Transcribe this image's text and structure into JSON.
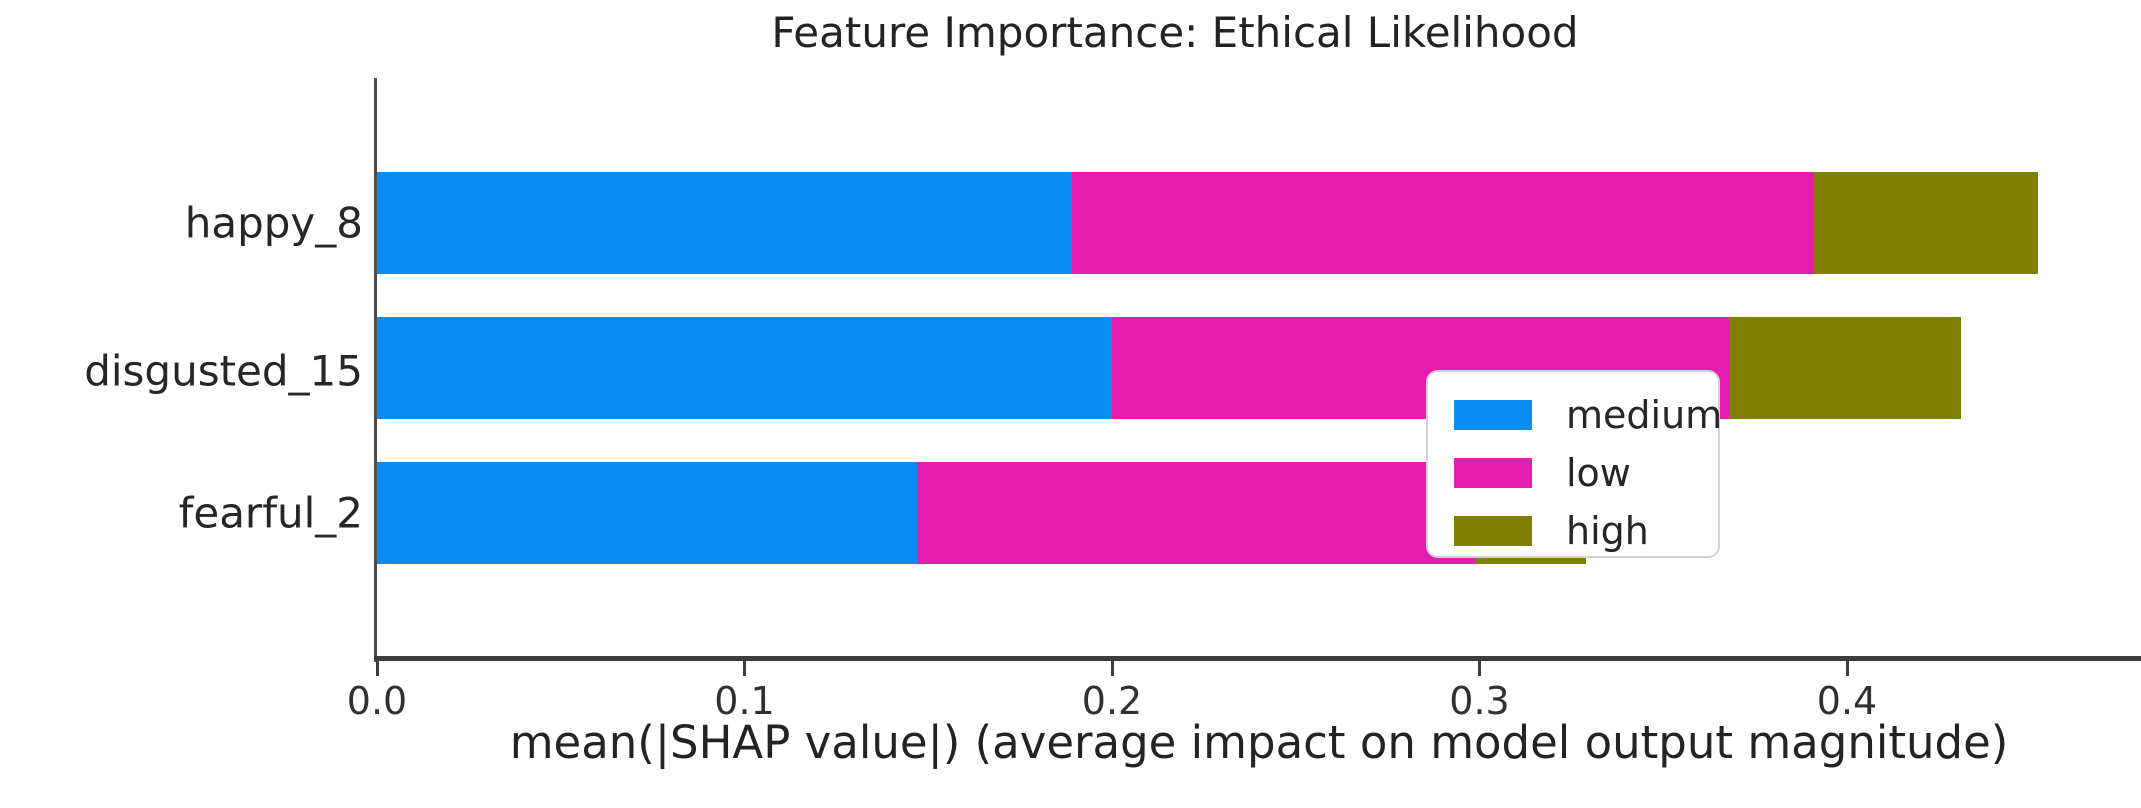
{
  "chart_data": {
    "type": "bar",
    "orientation": "horizontal-stacked",
    "title": "Feature Importance: Ethical Likelihood",
    "xlabel": "mean(|SHAP value|) (average impact on model output magnitude)",
    "ylabel": "",
    "categories": [
      "happy_8",
      "disgusted_15",
      "fearful_2"
    ],
    "series": [
      {
        "name": "medium",
        "color": "#0a8cf2",
        "values": [
          0.189,
          0.2,
          0.147
        ]
      },
      {
        "name": "low",
        "color": "#e61cb0",
        "values": [
          0.202,
          0.168,
          0.152
        ]
      },
      {
        "name": "high",
        "color": "#7f8000",
        "values": [
          0.061,
          0.063,
          0.03
        ]
      }
    ],
    "bar_totals": [
      0.452,
      0.431,
      0.329
    ],
    "xticks": [
      0.0,
      0.1,
      0.2,
      0.3,
      0.4
    ],
    "xtick_labels": [
      "0.0",
      "0.1",
      "0.2",
      "0.3",
      "0.4"
    ],
    "xlim": [
      0,
      0.48
    ],
    "grid": "off",
    "legend": {
      "position": "lower right",
      "entries": [
        "medium",
        "low",
        "high"
      ]
    },
    "colors": {
      "medium": "#0a8cf2",
      "low": "#e61cb0",
      "high": "#7f8000",
      "spine": "#3d3d3d",
      "text": "#262626"
    }
  }
}
